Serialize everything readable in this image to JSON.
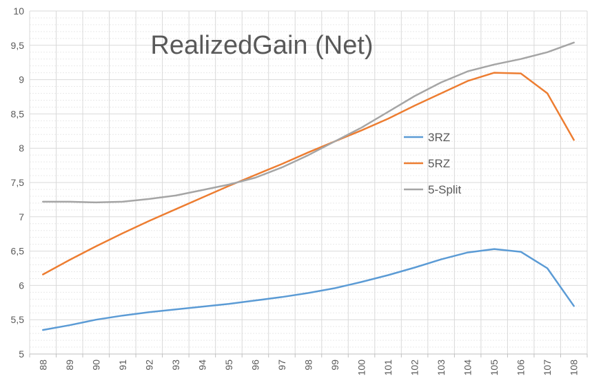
{
  "chart_data": {
    "type": "line",
    "title": "RealizedGain (Net)",
    "xlabel": "",
    "ylabel": "",
    "categories": [
      "88",
      "89",
      "90",
      "91",
      "92",
      "93",
      "94",
      "95",
      "96",
      "97",
      "98",
      "99",
      "100",
      "101",
      "102",
      "103",
      "104",
      "105",
      "106",
      "107",
      "108"
    ],
    "y_ticks": [
      "5",
      "5,5",
      "6",
      "6,5",
      "7",
      "7,5",
      "8",
      "8,5",
      "9",
      "9,5",
      "10"
    ],
    "ylim": [
      5,
      10
    ],
    "grid": true,
    "legend_position": "right-center",
    "series": [
      {
        "name": "3RZ",
        "color": "#5B9BD5",
        "values": [
          5.35,
          5.42,
          5.5,
          5.56,
          5.61,
          5.65,
          5.69,
          5.73,
          5.78,
          5.83,
          5.89,
          5.96,
          6.05,
          6.15,
          6.26,
          6.38,
          6.48,
          6.53,
          6.49,
          6.25,
          5.7
        ]
      },
      {
        "name": "5RZ",
        "color": "#ED7D31",
        "values": [
          6.16,
          6.37,
          6.57,
          6.76,
          6.94,
          7.11,
          7.28,
          7.45,
          7.61,
          7.77,
          7.94,
          8.1,
          8.26,
          8.43,
          8.62,
          8.8,
          8.98,
          9.1,
          9.09,
          8.8,
          8.12
        ]
      },
      {
        "name": "5-Split",
        "color": "#A5A5A5",
        "values": [
          7.22,
          7.22,
          7.21,
          7.22,
          7.26,
          7.31,
          7.39,
          7.47,
          7.57,
          7.72,
          7.9,
          8.1,
          8.3,
          8.53,
          8.76,
          8.96,
          9.12,
          9.22,
          9.3,
          9.4,
          9.54
        ]
      }
    ]
  }
}
